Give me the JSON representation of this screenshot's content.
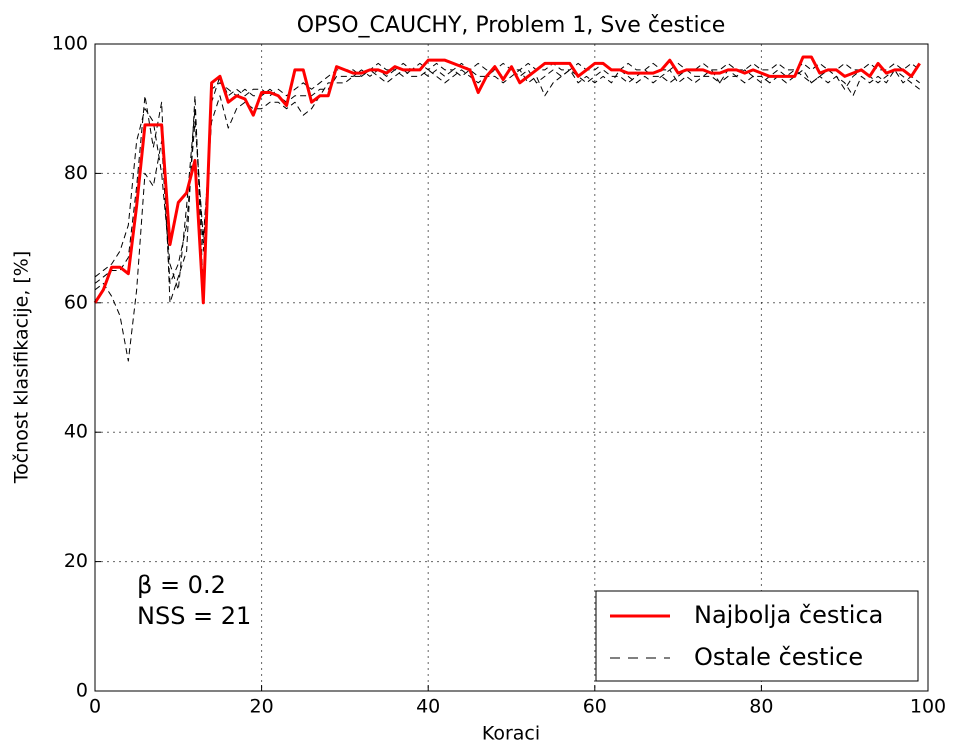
{
  "chart_data": {
    "type": "line",
    "title": "OPSO_CAUCHY, Problem 1, Sve čestice",
    "x_label": "Koraci",
    "y_label": "Točnost klasifikacije, [%]",
    "annotations": [
      "β = 0.2",
      "NSS = 21"
    ],
    "xlim": [
      0,
      100
    ],
    "xticks": [
      0,
      20,
      40,
      60,
      80,
      100
    ],
    "ylim": [
      0,
      100
    ],
    "yticks": [
      0,
      20,
      40,
      60,
      80,
      100
    ],
    "grid": true,
    "legend": "lower right",
    "x": [
      0,
      1,
      2,
      3,
      4,
      5,
      6,
      7,
      8,
      9,
      10,
      11,
      12,
      13,
      14,
      15,
      16,
      17,
      18,
      19,
      20,
      21,
      22,
      23,
      24,
      25,
      26,
      27,
      28,
      29,
      30,
      31,
      32,
      33,
      34,
      35,
      36,
      37,
      38,
      39,
      40,
      41,
      42,
      43,
      44,
      45,
      46,
      47,
      48,
      49,
      50,
      51,
      52,
      53,
      54,
      55,
      56,
      57,
      58,
      59,
      60,
      61,
      62,
      63,
      64,
      65,
      66,
      67,
      68,
      69,
      70,
      71,
      72,
      73,
      74,
      75,
      76,
      77,
      78,
      79,
      80,
      81,
      82,
      83,
      84,
      85,
      86,
      87,
      88,
      89,
      90,
      91,
      92,
      93,
      94,
      95,
      96,
      97,
      98,
      99
    ],
    "series": [
      {
        "name": "Najbolja čestica",
        "color": "#ff0000",
        "dashed": false,
        "values": [
          60,
          62,
          65.5,
          65.5,
          64.5,
          75,
          87.5,
          87.5,
          87.5,
          69,
          75.5,
          77,
          82,
          60,
          94,
          95,
          91,
          92,
          91.5,
          89,
          92.5,
          92.5,
          92,
          90.5,
          96,
          96,
          91,
          92,
          92,
          96.5,
          96,
          95.5,
          95.5,
          96,
          96,
          95.5,
          96.5,
          96,
          96,
          96,
          97.5,
          97.5,
          97.5,
          97,
          96.5,
          96,
          92.5,
          95,
          96.5,
          94.5,
          96.5,
          94,
          95,
          96,
          97,
          97,
          97,
          97,
          95,
          96,
          97,
          97,
          96,
          96,
          95.5,
          95.5,
          95.5,
          95.5,
          96,
          97.5,
          95.5,
          96,
          96,
          96,
          95.5,
          95.5,
          96,
          96,
          95.5,
          96,
          95.5,
          95,
          95,
          95,
          95,
          98,
          98,
          95.5,
          96,
          96,
          95,
          95.5,
          96,
          95,
          97,
          95.5,
          96,
          96,
          95,
          97
        ]
      },
      {
        "name": "Ostale čestice",
        "color": "#000000",
        "dashed": true,
        "values": [
          [
            63,
            64,
            65,
            65,
            67,
            78,
            92,
            84,
            91,
            60,
            64,
            68,
            92,
            62,
            93,
            94,
            93,
            92,
            93,
            92,
            92,
            93,
            92,
            91,
            92,
            92,
            92,
            93,
            93,
            95,
            95,
            95,
            96,
            95,
            96,
            95,
            96,
            95,
            96,
            96,
            95,
            96,
            95,
            96,
            95,
            96,
            95,
            95,
            96,
            95,
            96,
            95,
            96,
            94,
            95,
            96,
            95,
            96,
            95,
            94,
            95,
            96,
            95,
            95,
            94,
            95,
            96,
            95,
            95,
            94,
            95,
            96,
            95,
            95,
            96,
            94,
            95,
            95,
            96,
            95,
            94,
            95,
            96,
            95,
            96,
            95,
            94,
            95,
            96,
            95,
            93,
            95,
            96,
            95,
            94,
            95,
            96,
            95,
            94,
            93
          ],
          [
            62,
            63,
            61,
            58,
            51,
            62,
            80,
            78,
            85,
            63,
            66,
            72,
            88,
            70,
            88,
            92,
            87,
            90,
            91,
            90,
            90,
            91,
            91,
            90,
            91,
            89,
            90,
            92,
            94,
            94,
            94,
            95,
            95,
            96,
            95,
            94,
            95,
            96,
            95,
            95,
            96,
            95,
            94,
            95,
            96,
            95,
            94,
            95,
            95,
            94,
            95,
            96,
            94,
            95,
            92,
            94,
            95,
            96,
            94,
            95,
            94,
            95,
            94,
            96,
            95,
            94,
            95,
            94,
            95,
            96,
            94,
            95,
            94,
            95,
            95,
            94,
            96,
            95,
            94,
            95,
            95,
            94,
            95,
            94,
            95,
            96,
            94,
            95,
            94,
            95,
            94,
            92,
            95,
            94,
            95,
            94,
            96,
            94,
            95,
            94
          ],
          [
            64,
            65,
            66,
            68,
            72,
            85,
            90,
            88,
            80,
            66,
            62,
            75,
            90,
            68,
            91,
            95,
            92,
            93,
            92,
            93,
            93,
            92,
            93,
            92,
            93,
            94,
            93,
            94,
            95,
            96,
            96,
            96,
            95,
            96,
            97,
            96,
            96,
            97,
            96,
            97,
            96,
            97,
            96,
            96,
            97,
            96,
            97,
            96,
            96,
            97,
            96,
            96,
            97,
            96,
            96,
            97,
            96,
            96,
            97,
            96,
            96,
            97,
            96,
            96,
            97,
            96,
            96,
            97,
            96,
            96,
            97,
            96,
            96,
            97,
            96,
            96,
            97,
            96,
            96,
            97,
            96,
            96,
            97,
            96,
            96,
            97,
            96,
            97,
            96,
            96,
            97,
            96,
            96,
            97,
            96,
            96,
            97,
            96,
            97,
            96
          ]
        ]
      }
    ]
  }
}
